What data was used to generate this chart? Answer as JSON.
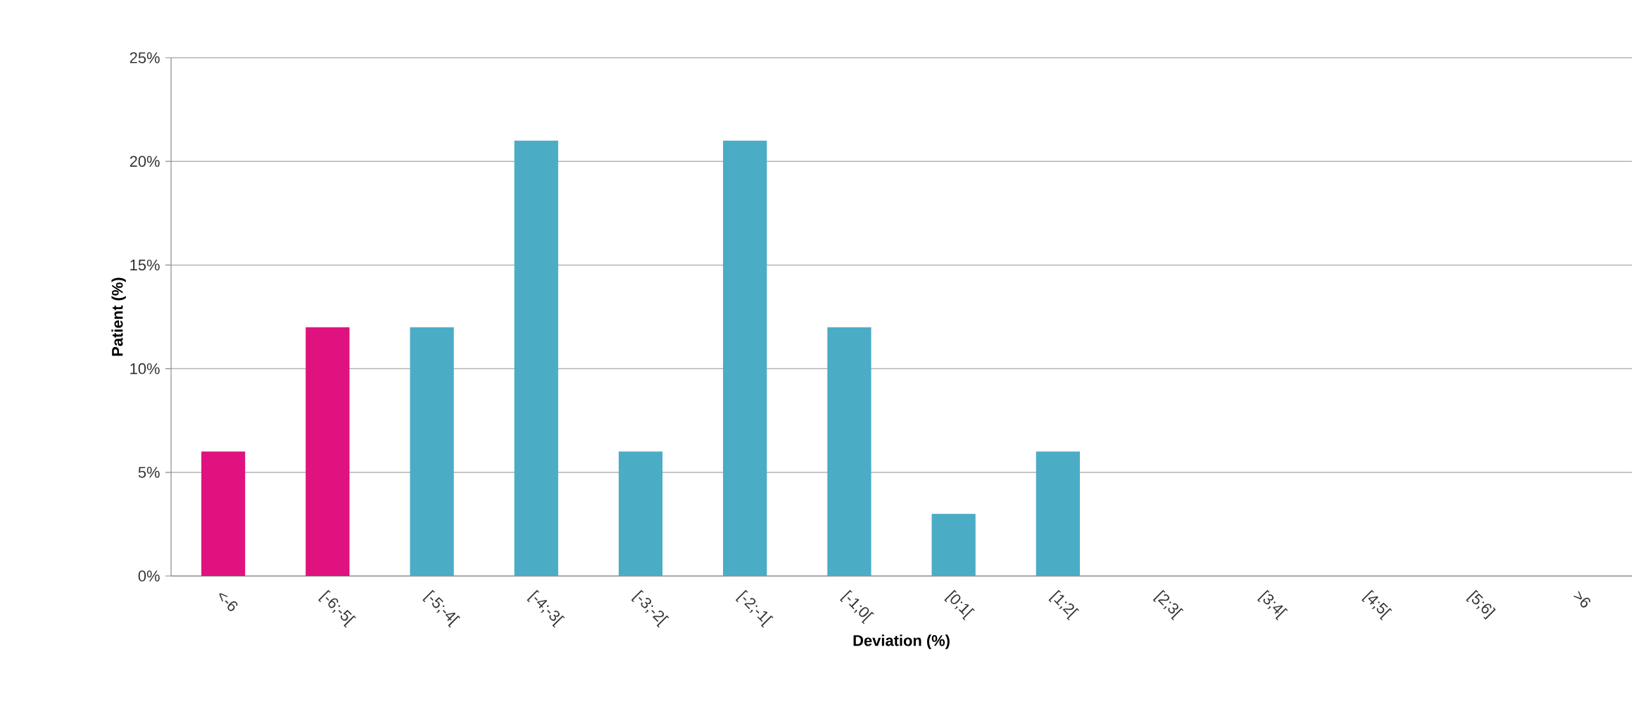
{
  "chart_data": {
    "type": "bar",
    "xlabel": "Deviation (%)",
    "ylabel": "Patient (%)",
    "categories": [
      "<-6",
      "[-6;-5[",
      "[-5;-4[",
      "[-4;-3[",
      "[-3;-2[",
      "[-2;-1[",
      "[-1;0[",
      "[0;1[",
      "[1;2[",
      "[2;3[",
      "[3;4[",
      "[4;5[",
      "[5;6]",
      ">6"
    ],
    "values": [
      6,
      12,
      12,
      21,
      6,
      21,
      12,
      3,
      6,
      0,
      0,
      0,
      0,
      0
    ],
    "colors": [
      "#e0127f",
      "#e0127f",
      "#4bacc6",
      "#4bacc6",
      "#4bacc6",
      "#4bacc6",
      "#4bacc6",
      "#4bacc6",
      "#4bacc6",
      "#4bacc6",
      "#4bacc6",
      "#4bacc6",
      "#4bacc6",
      "#4bacc6"
    ],
    "ylim": [
      0,
      25
    ],
    "yticks": [
      {
        "value": 0,
        "label": "0%"
      },
      {
        "value": 5,
        "label": "5%"
      },
      {
        "value": 10,
        "label": "10%"
      },
      {
        "value": 15,
        "label": "15%"
      },
      {
        "value": 20,
        "label": "20%"
      },
      {
        "value": 25,
        "label": "25%"
      }
    ],
    "grid": "y"
  }
}
